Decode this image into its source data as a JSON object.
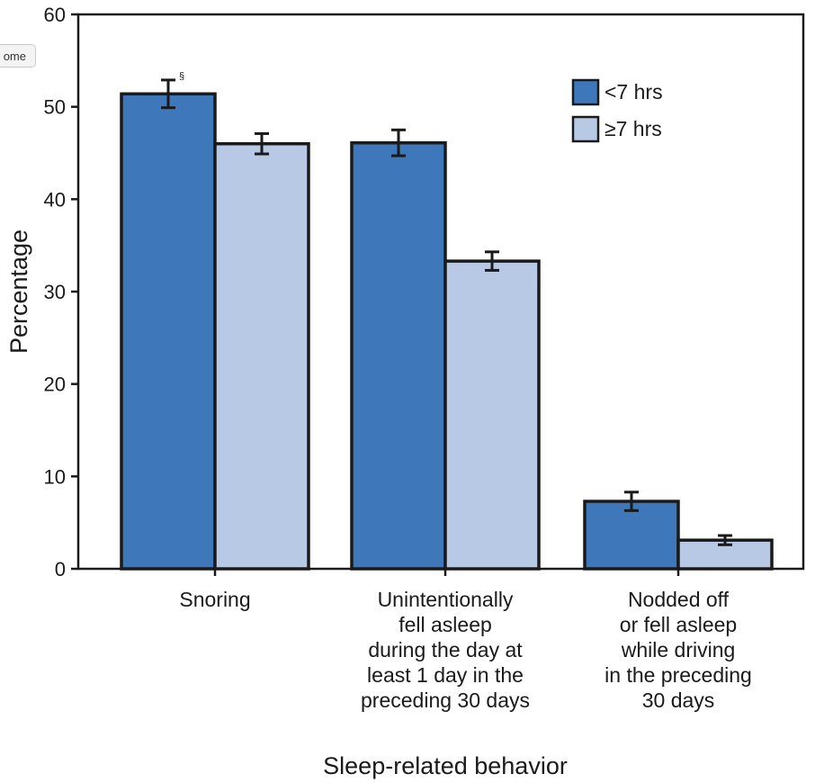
{
  "page_button": {
    "label": "ome"
  },
  "chart_data": {
    "type": "bar",
    "xlabel": "Sleep-related behavior",
    "ylabel": "Percentage",
    "ylim": [
      0,
      60
    ],
    "yticks": [
      0,
      10,
      20,
      30,
      40,
      50,
      60
    ],
    "categories": [
      [
        "Snoring"
      ],
      [
        "Unintentionally",
        "fell asleep",
        "during the day at",
        "least 1 day in the",
        "preceding 30 days"
      ],
      [
        "Nodded off",
        "or fell asleep",
        "while driving",
        "in the preceding",
        "30 days"
      ]
    ],
    "series": [
      {
        "name": "<7 hrs",
        "color": "#3f78ba",
        "values": [
          51.4,
          46.1,
          7.3
        ],
        "error_low": [
          49.9,
          44.7,
          6.3
        ],
        "error_high": [
          52.9,
          47.5,
          8.3
        ]
      },
      {
        "name": "≥7 hrs",
        "color": "#b8c9e5",
        "values": [
          46.0,
          33.3,
          3.1
        ],
        "error_low": [
          44.9,
          32.3,
          2.6
        ],
        "error_high": [
          47.1,
          34.3,
          3.6
        ]
      }
    ],
    "annotation": "§",
    "legend_position": "top-right",
    "grid": false
  }
}
